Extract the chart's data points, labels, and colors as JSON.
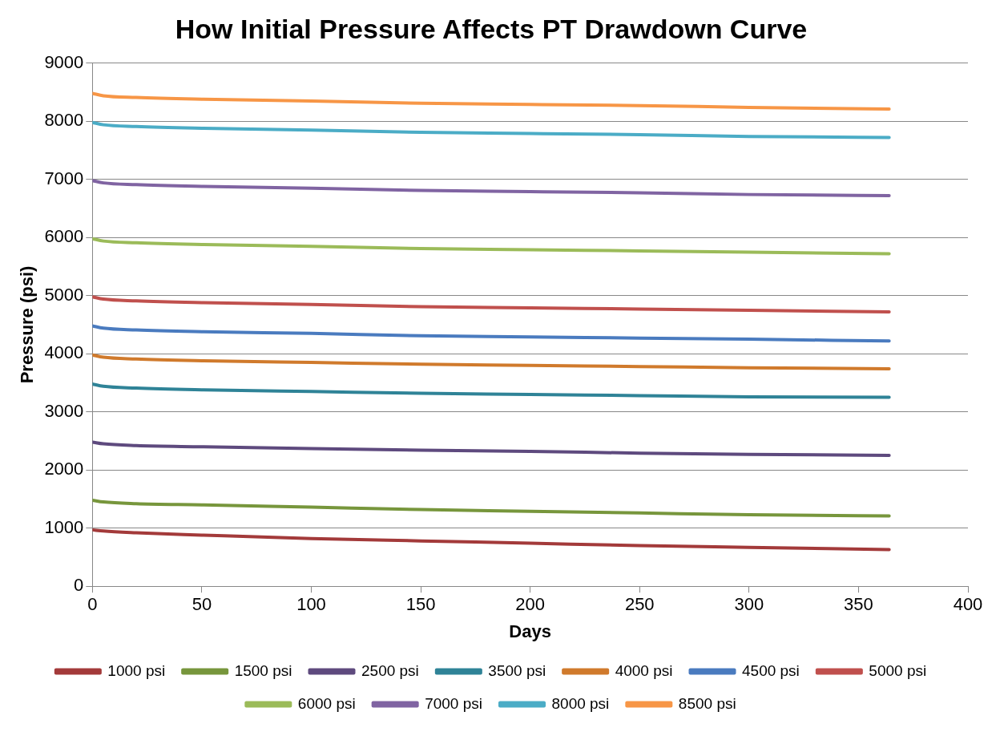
{
  "chart_data": {
    "type": "line",
    "title": "How Initial Pressure Affects PT Drawdown Curve",
    "xlabel": "Days",
    "ylabel": "Pressure (psi)",
    "x": [
      0,
      5,
      20,
      50,
      100,
      150,
      200,
      250,
      300,
      364
    ],
    "xlim": [
      0,
      400
    ],
    "xticks": [
      0,
      50,
      100,
      150,
      200,
      250,
      300,
      350,
      400
    ],
    "ylim": [
      0,
      9000
    ],
    "yticks": [
      0,
      1000,
      2000,
      3000,
      4000,
      5000,
      6000,
      7000,
      8000,
      9000
    ],
    "grid": "y",
    "legend": "bottom",
    "marker": "none",
    "line_style": "solid",
    "series": [
      {
        "name": "1000 psi",
        "color": "#a33a3a",
        "values": [
          970,
          950,
          920,
          880,
          820,
          780,
          740,
          700,
          670,
          630
        ]
      },
      {
        "name": "1500 psi",
        "color": "#77963c",
        "values": [
          1480,
          1450,
          1420,
          1400,
          1360,
          1320,
          1290,
          1260,
          1230,
          1210
        ]
      },
      {
        "name": "2500 psi",
        "color": "#5e4a7e",
        "values": [
          2480,
          2450,
          2420,
          2400,
          2370,
          2340,
          2320,
          2290,
          2270,
          2250
        ]
      },
      {
        "name": "3500 psi",
        "color": "#2f8397",
        "values": [
          3480,
          3440,
          3410,
          3380,
          3350,
          3320,
          3300,
          3280,
          3260,
          3250
        ]
      },
      {
        "name": "4000 psi",
        "color": "#d07a2c",
        "values": [
          3980,
          3940,
          3910,
          3880,
          3850,
          3820,
          3800,
          3780,
          3760,
          3740
        ]
      },
      {
        "name": "4500 psi",
        "color": "#4a7bbf",
        "values": [
          4480,
          4440,
          4410,
          4380,
          4350,
          4310,
          4290,
          4270,
          4250,
          4220
        ]
      },
      {
        "name": "5000 psi",
        "color": "#c0504d",
        "values": [
          4980,
          4940,
          4910,
          4880,
          4850,
          4810,
          4790,
          4770,
          4750,
          4720
        ]
      },
      {
        "name": "6000 psi",
        "color": "#9bbb59",
        "values": [
          5980,
          5940,
          5910,
          5880,
          5850,
          5810,
          5790,
          5770,
          5750,
          5720
        ]
      },
      {
        "name": "7000 psi",
        "color": "#8064a2",
        "values": [
          6980,
          6940,
          6910,
          6880,
          6850,
          6810,
          6790,
          6770,
          6740,
          6720
        ]
      },
      {
        "name": "8000 psi",
        "color": "#4bacc6",
        "values": [
          7980,
          7940,
          7910,
          7880,
          7850,
          7810,
          7790,
          7770,
          7740,
          7720
        ]
      },
      {
        "name": "8500 psi",
        "color": "#f79646",
        "values": [
          8480,
          8440,
          8410,
          8380,
          8350,
          8310,
          8290,
          8270,
          8240,
          8210
        ]
      }
    ]
  }
}
